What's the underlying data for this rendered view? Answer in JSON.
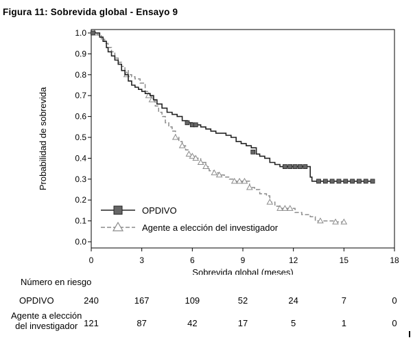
{
  "title": "Figura 11: Sobrevida global - Ensayo 9",
  "chart_data": {
    "type": "line",
    "xlabel": "Sobrevida global (meses)",
    "ylabel": "Probabilidad de sobrevida",
    "xlim": [
      0,
      18
    ],
    "ylim": [
      0.0,
      1.0
    ],
    "x_ticks": [
      0,
      3,
      6,
      9,
      12,
      15,
      18
    ],
    "y_ticks": [
      0.0,
      0.1,
      0.2,
      0.3,
      0.4,
      0.5,
      0.6,
      0.7,
      0.8,
      0.9,
      1.0
    ],
    "x_tick_labels": [
      "0",
      "3",
      "6",
      "9",
      "12",
      "15",
      "18"
    ],
    "y_tick_labels": [
      "0.0",
      "0.1",
      "0.2",
      "0.3",
      "0.4",
      "0.5",
      "0.6",
      "0.7",
      "0.8",
      "0.9",
      "1.0"
    ],
    "legend_position": "bottom-left",
    "grid": false,
    "series": [
      {
        "name": "OPDIVO",
        "color": "#222222",
        "line_style": "solid",
        "marker": "filled-square",
        "points": [
          [
            0,
            1.0
          ],
          [
            0.1,
            1.0
          ],
          [
            0.3,
            1.0
          ],
          [
            0.5,
            0.98
          ],
          [
            0.7,
            0.96
          ],
          [
            0.9,
            0.93
          ],
          [
            1.0,
            0.91
          ],
          [
            1.2,
            0.89
          ],
          [
            1.4,
            0.87
          ],
          [
            1.6,
            0.85
          ],
          [
            1.8,
            0.82
          ],
          [
            2.0,
            0.8
          ],
          [
            2.2,
            0.77
          ],
          [
            2.4,
            0.75
          ],
          [
            2.6,
            0.74
          ],
          [
            2.8,
            0.73
          ],
          [
            3.0,
            0.72
          ],
          [
            3.2,
            0.71
          ],
          [
            3.5,
            0.7
          ],
          [
            3.7,
            0.68
          ],
          [
            3.9,
            0.66
          ],
          [
            4.2,
            0.64
          ],
          [
            4.5,
            0.62
          ],
          [
            4.8,
            0.61
          ],
          [
            5.1,
            0.6
          ],
          [
            5.4,
            0.58
          ],
          [
            5.7,
            0.57
          ],
          [
            6.0,
            0.56
          ],
          [
            6.2,
            0.56
          ],
          [
            6.5,
            0.55
          ],
          [
            6.8,
            0.54
          ],
          [
            7.1,
            0.53
          ],
          [
            7.4,
            0.52
          ],
          [
            7.7,
            0.52
          ],
          [
            8.0,
            0.51
          ],
          [
            8.3,
            0.5
          ],
          [
            8.6,
            0.48
          ],
          [
            8.9,
            0.47
          ],
          [
            9.2,
            0.46
          ],
          [
            9.5,
            0.45
          ],
          [
            9.8,
            0.42
          ],
          [
            10.0,
            0.41
          ],
          [
            10.3,
            0.4
          ],
          [
            10.6,
            0.38
          ],
          [
            10.9,
            0.37
          ],
          [
            11.2,
            0.36
          ],
          [
            11.5,
            0.36
          ],
          [
            11.8,
            0.36
          ],
          [
            12.1,
            0.36
          ],
          [
            12.4,
            0.36
          ],
          [
            12.7,
            0.36
          ],
          [
            12.9,
            0.36
          ],
          [
            13.0,
            0.31
          ],
          [
            13.1,
            0.29
          ],
          [
            13.5,
            0.29
          ],
          [
            13.9,
            0.29
          ],
          [
            14.3,
            0.29
          ],
          [
            14.7,
            0.29
          ],
          [
            15.1,
            0.29
          ],
          [
            15.5,
            0.29
          ],
          [
            15.9,
            0.29
          ],
          [
            16.3,
            0.29
          ],
          [
            16.7,
            0.29
          ]
        ],
        "markers": [
          [
            0.1,
            1.0
          ],
          [
            5.7,
            0.57
          ],
          [
            6.0,
            0.56
          ],
          [
            6.2,
            0.56
          ],
          [
            9.6,
            0.43
          ],
          [
            11.5,
            0.36
          ],
          [
            11.8,
            0.36
          ],
          [
            12.1,
            0.36
          ],
          [
            12.4,
            0.36
          ],
          [
            12.7,
            0.36
          ],
          [
            13.5,
            0.29
          ],
          [
            13.9,
            0.29
          ],
          [
            14.3,
            0.29
          ],
          [
            14.7,
            0.29
          ],
          [
            15.1,
            0.29
          ],
          [
            15.5,
            0.29
          ],
          [
            15.9,
            0.29
          ],
          [
            16.3,
            0.29
          ],
          [
            16.7,
            0.29
          ]
        ]
      },
      {
        "name": "Agente a elección del investigador",
        "color": "#8a8a8a",
        "line_style": "dashed",
        "marker": "open-triangle",
        "points": [
          [
            0,
            1.0
          ],
          [
            0.2,
            1.0
          ],
          [
            0.4,
            0.99
          ],
          [
            0.6,
            0.97
          ],
          [
            0.8,
            0.95
          ],
          [
            1.0,
            0.93
          ],
          [
            1.2,
            0.91
          ],
          [
            1.4,
            0.88
          ],
          [
            1.6,
            0.86
          ],
          [
            1.8,
            0.84
          ],
          [
            2.0,
            0.82
          ],
          [
            2.2,
            0.8
          ],
          [
            2.4,
            0.79
          ],
          [
            2.6,
            0.78
          ],
          [
            2.9,
            0.76
          ],
          [
            3.2,
            0.72
          ],
          [
            3.4,
            0.7
          ],
          [
            3.6,
            0.68
          ],
          [
            3.8,
            0.65
          ],
          [
            4.0,
            0.62
          ],
          [
            4.2,
            0.6
          ],
          [
            4.4,
            0.57
          ],
          [
            4.6,
            0.55
          ],
          [
            4.8,
            0.53
          ],
          [
            5.0,
            0.5
          ],
          [
            5.2,
            0.48
          ],
          [
            5.4,
            0.46
          ],
          [
            5.6,
            0.44
          ],
          [
            5.8,
            0.42
          ],
          [
            6.0,
            0.41
          ],
          [
            6.2,
            0.4
          ],
          [
            6.5,
            0.38
          ],
          [
            6.8,
            0.36
          ],
          [
            7.0,
            0.34
          ],
          [
            7.3,
            0.33
          ],
          [
            7.6,
            0.32
          ],
          [
            7.9,
            0.31
          ],
          [
            8.2,
            0.3
          ],
          [
            8.5,
            0.29
          ],
          [
            8.8,
            0.29
          ],
          [
            9.1,
            0.29
          ],
          [
            9.4,
            0.26
          ],
          [
            9.7,
            0.25
          ],
          [
            10.0,
            0.23
          ],
          [
            10.4,
            0.22
          ],
          [
            10.6,
            0.19
          ],
          [
            10.9,
            0.17
          ],
          [
            11.2,
            0.16
          ],
          [
            11.5,
            0.16
          ],
          [
            11.8,
            0.16
          ],
          [
            12.1,
            0.14
          ],
          [
            12.5,
            0.13
          ],
          [
            13.0,
            0.12
          ],
          [
            13.3,
            0.1
          ],
          [
            13.6,
            0.1
          ],
          [
            14.0,
            0.1
          ],
          [
            14.5,
            0.095
          ],
          [
            15.0,
            0.095
          ]
        ],
        "markers": [
          [
            0.2,
            1.0
          ],
          [
            2.1,
            0.8
          ],
          [
            3.4,
            0.7
          ],
          [
            3.6,
            0.68
          ],
          [
            5.0,
            0.5
          ],
          [
            5.4,
            0.46
          ],
          [
            5.8,
            0.42
          ],
          [
            6.0,
            0.41
          ],
          [
            6.2,
            0.4
          ],
          [
            6.5,
            0.38
          ],
          [
            6.8,
            0.36
          ],
          [
            7.3,
            0.33
          ],
          [
            7.6,
            0.32
          ],
          [
            8.5,
            0.29
          ],
          [
            8.8,
            0.29
          ],
          [
            9.1,
            0.29
          ],
          [
            9.4,
            0.26
          ],
          [
            10.6,
            0.19
          ],
          [
            11.2,
            0.16
          ],
          [
            11.5,
            0.16
          ],
          [
            11.8,
            0.16
          ],
          [
            13.6,
            0.1
          ],
          [
            14.5,
            0.095
          ],
          [
            15.0,
            0.095
          ]
        ]
      }
    ],
    "risk_table": {
      "header": "Número en riesgo",
      "times": [
        0,
        3,
        6,
        9,
        12,
        15,
        18
      ],
      "rows": [
        {
          "label": "OPDIVO",
          "values": [
            "240",
            "167",
            "109",
            "52",
            "24",
            "7",
            "0"
          ]
        },
        {
          "label": [
            "Agente a elección",
            "del investigador"
          ],
          "values": [
            "121",
            "87",
            "42",
            "17",
            "5",
            "1",
            "0"
          ]
        }
      ]
    }
  }
}
